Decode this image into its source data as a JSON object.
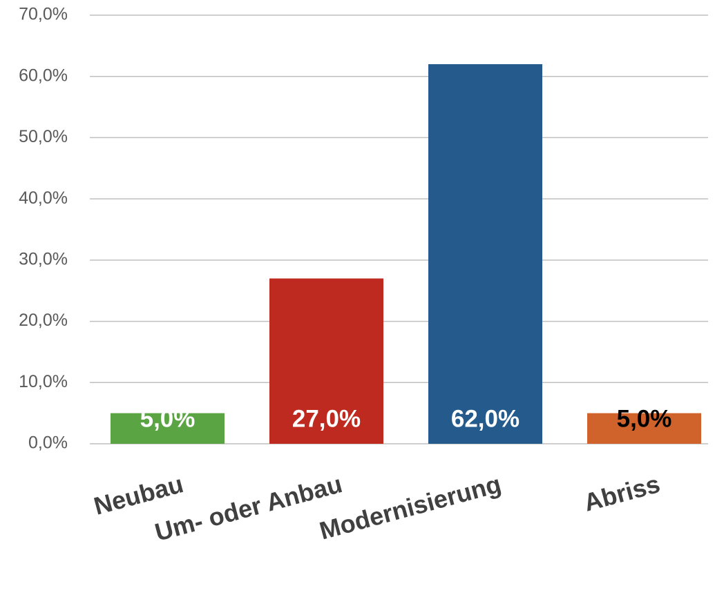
{
  "chart_data": {
    "type": "bar",
    "categories": [
      "Neubau",
      "Um- oder Anbau",
      "Modernisierung",
      "Abriss"
    ],
    "values": [
      5,
      27,
      62,
      5
    ],
    "value_labels": [
      "5,0%",
      "27,0%",
      "62,0%",
      "5,0%"
    ],
    "colors": [
      "#5ba443",
      "#be2a1f",
      "#245a8c",
      "#d0622b"
    ],
    "value_label_colors": [
      "#ffffff",
      "#ffffff",
      "#ffffff",
      "#000000"
    ],
    "ylim": [
      0,
      70
    ],
    "yticks": [
      {
        "value": 0,
        "label": "0,0%"
      },
      {
        "value": 10,
        "label": "10,0%"
      },
      {
        "value": 20,
        "label": "20,0%"
      },
      {
        "value": 30,
        "label": "30,0%"
      },
      {
        "value": 40,
        "label": "40,0%"
      },
      {
        "value": 50,
        "label": "50,0%"
      },
      {
        "value": 60,
        "label": "60,0%"
      },
      {
        "value": 70,
        "label": "70,0%"
      }
    ],
    "grid": true
  }
}
